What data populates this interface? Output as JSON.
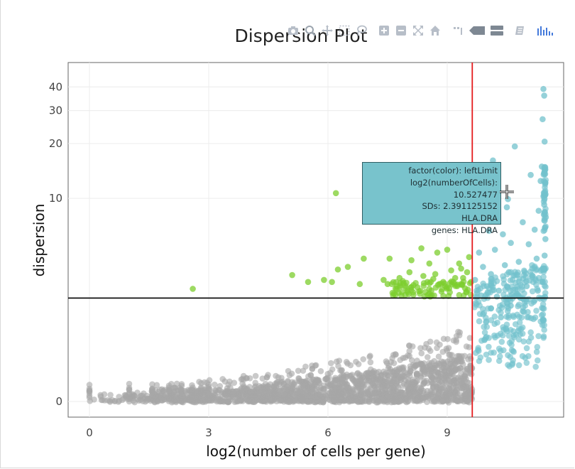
{
  "toolbar": {
    "icons": [
      "camera-icon",
      "zoom-icon",
      "pan-icon",
      "box-select-icon",
      "lasso-icon",
      "zoom-in-icon",
      "zoom-out-icon",
      "autoscale-icon",
      "home-icon",
      "spike-lines-icon",
      "closest-hover-icon",
      "compare-hover-icon",
      "plotly-icon",
      "chart-bars-icon"
    ]
  },
  "chart_data": {
    "type": "scatter",
    "title": "Dispersion Plot",
    "xlabel": "log2(number of cells per gene)",
    "ylabel": "dispersion",
    "y_scale": "log",
    "xlim": [
      -0.5,
      12
    ],
    "x_ticks": [
      0,
      3,
      6,
      9
    ],
    "y_ticks": [
      0,
      10,
      20,
      30,
      40
    ],
    "grid": true,
    "legend": "none",
    "vline_x": 9.63,
    "hline_y": 2.39,
    "colors": {
      "gray": "#a6a6a6",
      "green": "#7ccd2e",
      "teal": "#72c2cc",
      "vline": "#e41a1c",
      "hline": "#000000"
    },
    "series": [
      {
        "color": "green",
        "points": [
          [
            2.6,
            2.78
          ],
          [
            5.1,
            3.45
          ],
          [
            5.5,
            3.1
          ],
          [
            5.9,
            3.2
          ],
          [
            6.1,
            3.1
          ],
          [
            6.2,
            10.7
          ],
          [
            6.25,
            3.75
          ],
          [
            6.5,
            3.9
          ],
          [
            6.8,
            3.0
          ],
          [
            6.9,
            4.4
          ],
          [
            7.4,
            3.2
          ],
          [
            7.5,
            3.0
          ],
          [
            7.55,
            4.4
          ],
          [
            7.7,
            2.8
          ],
          [
            7.8,
            3.3
          ],
          [
            8.0,
            2.7
          ],
          [
            8.05,
            3.6
          ],
          [
            8.1,
            4.3
          ],
          [
            8.25,
            2.85
          ],
          [
            8.35,
            5.1
          ],
          [
            8.5,
            3.1
          ],
          [
            8.55,
            4.1
          ],
          [
            8.6,
            2.7
          ],
          [
            8.7,
            3.5
          ],
          [
            8.75,
            4.8
          ],
          [
            8.8,
            3.0
          ],
          [
            8.9,
            3.1
          ],
          [
            9.0,
            5.0
          ],
          [
            9.05,
            2.8
          ],
          [
            9.1,
            3.7
          ],
          [
            9.15,
            3.1
          ],
          [
            9.2,
            3.3
          ],
          [
            9.25,
            2.9
          ],
          [
            9.3,
            4.1
          ],
          [
            9.35,
            3.0
          ],
          [
            9.4,
            3.3
          ],
          [
            9.45,
            2.8
          ],
          [
            9.5,
            3.6
          ],
          [
            9.55,
            4.5
          ],
          [
            9.6,
            3.1
          ],
          [
            7.9,
            3.05
          ],
          [
            8.15,
            2.95
          ],
          [
            8.4,
            3.4
          ],
          [
            8.65,
            3.25
          ],
          [
            8.95,
            2.9
          ],
          [
            9.35,
            3.8
          ]
        ]
      },
      {
        "color": "teal",
        "points": [
          [
            9.7,
            3.2
          ],
          [
            9.75,
            2.6
          ],
          [
            9.8,
            4.8
          ],
          [
            9.9,
            3.9
          ],
          [
            10.0,
            2.9
          ],
          [
            10.05,
            6.5
          ],
          [
            10.1,
            3.5
          ],
          [
            10.15,
            16.2
          ],
          [
            10.2,
            5.0
          ],
          [
            10.3,
            2.7
          ],
          [
            10.4,
            6.2
          ],
          [
            10.45,
            4.0
          ],
          [
            10.5,
            8.9
          ],
          [
            10.527477,
            9.9
          ],
          [
            10.55,
            3.6
          ],
          [
            10.6,
            5.5
          ],
          [
            10.7,
            19.3
          ],
          [
            10.8,
            4.2
          ],
          [
            10.9,
            7.3
          ],
          [
            11.0,
            2.9
          ],
          [
            11.05,
            5.4
          ],
          [
            11.1,
            13.5
          ],
          [
            11.15,
            3.4
          ],
          [
            11.2,
            6.6
          ],
          [
            11.25,
            4.4
          ],
          [
            11.3,
            8.5
          ],
          [
            11.35,
            12.5
          ],
          [
            11.38,
            15.0
          ],
          [
            11.4,
            27.0
          ],
          [
            11.42,
            39.0
          ],
          [
            11.44,
            36.0
          ],
          [
            11.45,
            20.5
          ],
          [
            11.46,
            10.8
          ],
          [
            11.48,
            7.8
          ],
          [
            9.85,
            2.5
          ],
          [
            10.25,
            2.45
          ],
          [
            10.75,
            2.55
          ],
          [
            11.28,
            2.7
          ],
          [
            9.72,
            2.2
          ],
          [
            9.9,
            1.8
          ],
          [
            10.1,
            2.0
          ],
          [
            10.35,
            1.7
          ],
          [
            10.6,
            2.1
          ],
          [
            10.9,
            1.9
          ],
          [
            11.2,
            2.3
          ],
          [
            11.4,
            3.1
          ],
          [
            11.45,
            4.6
          ],
          [
            11.47,
            5.8
          ],
          [
            11.44,
            9.2
          ]
        ]
      }
    ],
    "tooltip": {
      "lines": [
        "factor(color): leftLimit",
        "log2(numberOfCells): 10.527477",
        "SDs: 2.391125152",
        "HLA.DRA",
        "genes: HLA.DRA"
      ]
    }
  }
}
